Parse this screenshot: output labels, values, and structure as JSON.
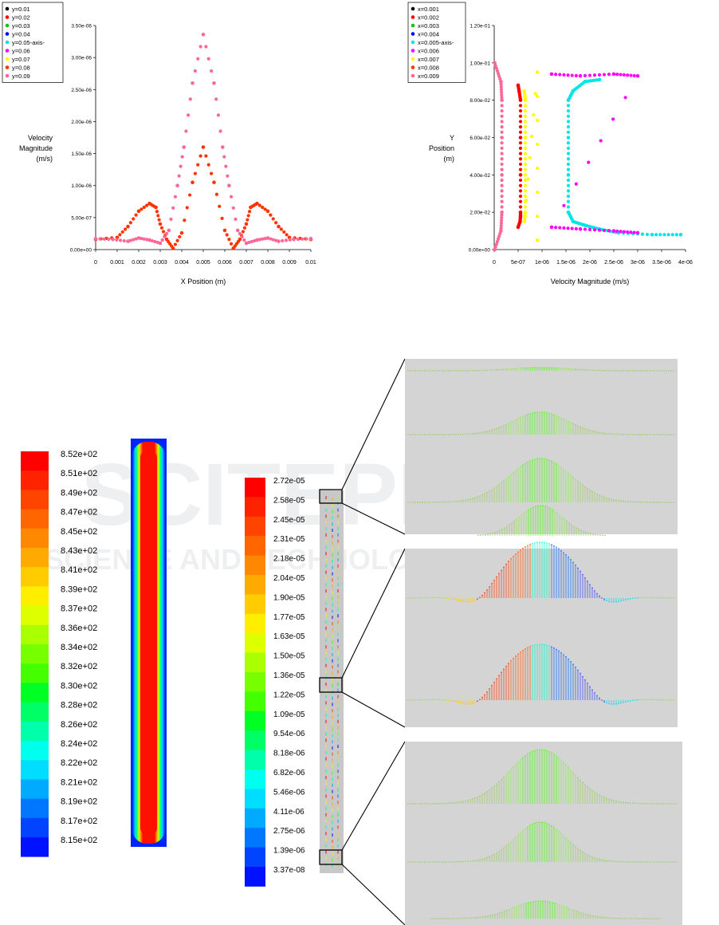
{
  "chart_data": [
    {
      "type": "scatter",
      "xlabel": "X Position (m)",
      "ylabel": [
        "Velocity",
        "Magnitude",
        "(m/s)"
      ],
      "xlim": [
        0,
        0.01
      ],
      "ylim": [
        0,
        3.5e-06
      ],
      "x_ticks": [
        "0",
        "0.001",
        "0.002",
        "0.003",
        "0.004",
        "0.005",
        "0.006",
        "0.007",
        "0.008",
        "0.009",
        "0.01"
      ],
      "y_ticks": [
        "0.00e+00",
        "5.00e-07",
        "1.00e-06",
        "1.50e-06",
        "2.00e-06",
        "2.50e-06",
        "3.00e-06",
        "3.50e-06"
      ],
      "legend_position": "top-left",
      "series": [
        {
          "name": "y=0.01",
          "color": "#000000",
          "x": [],
          "y": []
        },
        {
          "name": "y=0.02",
          "color": "#ff0000",
          "x": [],
          "y": []
        },
        {
          "name": "y=0.03",
          "color": "#00cc00",
          "x": [],
          "y": []
        },
        {
          "name": "y=0.04",
          "color": "#0000ff",
          "x": [],
          "y": []
        },
        {
          "name": "y=0.05-axis-",
          "color": "#00e5e5",
          "x": [],
          "y": []
        },
        {
          "name": "y=0.06",
          "color": "#ff00ff",
          "x": [],
          "y": []
        },
        {
          "name": "y=0.07",
          "color": "#ffff00",
          "x": [],
          "y": []
        },
        {
          "name": "y=0.08",
          "color": "#ff3300",
          "x": [
            0,
            0.001,
            0.0015,
            0.002,
            0.0025,
            0.0028,
            0.003,
            0.0033,
            0.0036,
            0.004,
            0.0045,
            0.005,
            0.0055,
            0.006,
            0.0064,
            0.0067,
            0.007,
            0.0072,
            0.0075,
            0.008,
            0.0085,
            0.009,
            0.01
          ],
          "y": [
            1.6e-07,
            1.9e-07,
            3.6e-07,
            6e-07,
            7.2e-07,
            6.6e-07,
            4e-07,
            1.6e-07,
            2e-08,
            2.6e-07,
            1.05e-06,
            1.6e-06,
            1.05e-06,
            3e-07,
            2e-08,
            1.6e-07,
            4e-07,
            6.6e-07,
            7.2e-07,
            6e-07,
            3.6e-07,
            1.9e-07,
            1.6e-07
          ]
        },
        {
          "name": "y=0.09",
          "color": "#ff6699",
          "x": [
            0,
            0.0008,
            0.0015,
            0.002,
            0.0025,
            0.003,
            0.0034,
            0.0038,
            0.0041,
            0.0045,
            0.005,
            0.0055,
            0.0059,
            0.0062,
            0.0066,
            0.007,
            0.0075,
            0.008,
            0.0085,
            0.0092,
            0.01
          ],
          "y": [
            1.7e-07,
            1.6e-07,
            1.3e-07,
            1.8e-07,
            1.5e-07,
            1e-07,
            3e-07,
            1e-06,
            1.6e-06,
            2.6e-06,
            3.36e-06,
            2.6e-06,
            1.6e-06,
            1e-06,
            3e-07,
            1e-07,
            1.5e-07,
            1.8e-07,
            1.3e-07,
            1.6e-07,
            1.7e-07
          ]
        }
      ]
    },
    {
      "type": "scatter",
      "xlabel": "Velocity Magnitude (m/s)",
      "ylabel": [
        "Y",
        "Position",
        "(m)"
      ],
      "xlim": [
        0,
        4e-06
      ],
      "ylim": [
        0,
        0.12
      ],
      "x_ticks": [
        "0",
        "5e-07",
        "1e-06",
        "1.5e-06",
        "2e-06",
        "2.5e-06",
        "3e-06",
        "3.5e-06",
        "4e-06"
      ],
      "y_ticks": [
        "0.00e+00",
        "2.00e-02",
        "4.00e-02",
        "6.00e-02",
        "8.00e-02",
        "1.00e-01",
        "1.20e-01"
      ],
      "legend_position": "top-left",
      "series": [
        {
          "name": "x=0.001",
          "color": "#000000",
          "x": [],
          "y": []
        },
        {
          "name": "x=0.002",
          "color": "#ff0000",
          "x": [
            5e-07,
            5.2e-07,
            5.5e-07,
            5.5e-07,
            5.5e-07,
            5.5e-07,
            5.5e-07,
            5.4e-07,
            5e-07
          ],
          "y": [
            0.088,
            0.085,
            0.08,
            0.06,
            0.04,
            0.02,
            0.018,
            0.015,
            0.012
          ]
        },
        {
          "name": "x=0.003",
          "color": "#00cc00",
          "x": [],
          "y": []
        },
        {
          "name": "x=0.004",
          "color": "#0000ff",
          "x": [],
          "y": []
        },
        {
          "name": "x=0.005-axis-",
          "color": "#00e5e5",
          "x": [
            2.2e-06,
            1.9e-06,
            1.65e-06,
            1.55e-06,
            1.55e-06,
            1.55e-06,
            1.55e-06,
            1.65e-06,
            1.9e-06,
            2.2e-06,
            2.6e-06,
            3.3e-06,
            3.9e-06
          ],
          "y": [
            0.091,
            0.09,
            0.085,
            0.08,
            0.06,
            0.04,
            0.02,
            0.015,
            0.013,
            0.011,
            0.009,
            0.008,
            0.008
          ]
        },
        {
          "name": "x=0.006",
          "color": "#ff00ff",
          "x": [
            1.2e-06,
            1.8e-06,
            2.5e-06,
            3e-06,
            1.2e-06,
            1.8e-06,
            2.5e-06,
            3e-06
          ],
          "y": [
            0.094,
            0.093,
            0.094,
            0.093,
            0.012,
            0.011,
            0.01,
            0.009
          ]
        },
        {
          "name": "x=0.007",
          "color": "#ffff00",
          "x": [
            6.3e-07,
            6.5e-07,
            6.5e-07,
            6.5e-07,
            6.5e-07,
            6.3e-07,
            9e-07,
            9e-07
          ],
          "y": [
            0.085,
            0.08,
            0.06,
            0.04,
            0.02,
            0.015,
            0.095,
            0.005
          ]
        },
        {
          "name": "x=0.008",
          "color": "#ff3300",
          "x": [],
          "y": []
        },
        {
          "name": "x=0.009",
          "color": "#ff6699",
          "x": [
            1e-08,
            1.4e-07,
            1.6e-07,
            1.6e-07,
            1.6e-07,
            1.6e-07,
            1.4e-07,
            1e-08
          ],
          "y": [
            0.1,
            0.09,
            0.08,
            0.06,
            0.04,
            0.02,
            0.01,
            0.0
          ]
        }
      ]
    }
  ],
  "colorbars": {
    "left": {
      "labels": [
        "8.52e+02",
        "8.51e+02",
        "8.49e+02",
        "8.47e+02",
        "8.45e+02",
        "8.43e+02",
        "8.41e+02",
        "8.39e+02",
        "8.37e+02",
        "8.36e+02",
        "8.34e+02",
        "8.32e+02",
        "8.30e+02",
        "8.28e+02",
        "8.26e+02",
        "8.24e+02",
        "8.22e+02",
        "8.21e+02",
        "8.19e+02",
        "8.17e+02",
        "8.15e+02"
      ]
    },
    "middle": {
      "labels": [
        "2.72e-05",
        "2.58e-05",
        "2.45e-05",
        "2.31e-05",
        "2.18e-05",
        "2.04e-05",
        "1.90e-05",
        "1.77e-05",
        "1.63e-05",
        "1.50e-05",
        "1.36e-05",
        "1.22e-05",
        "1.09e-05",
        "9.54e-06",
        "8.18e-06",
        "6.82e-06",
        "5.46e-06",
        "4.11e-06",
        "2.75e-06",
        "1.39e-06",
        "3.37e-08"
      ]
    },
    "colors": [
      "#ff0000",
      "#ff2200",
      "#ff4400",
      "#ff6600",
      "#ff8800",
      "#ffaa00",
      "#ffcc00",
      "#ffee00",
      "#ddff00",
      "#aaff00",
      "#77ff00",
      "#44ff00",
      "#00ff22",
      "#00ff66",
      "#00ffaa",
      "#00ffee",
      "#00ddff",
      "#00aaff",
      "#0077ff",
      "#0044ff",
      "#0011ff"
    ]
  },
  "watermark": {
    "line1": "SCITEPRESS",
    "line2": "SCIENCE AND TECHNOLOGY PUBLICATIONS"
  }
}
